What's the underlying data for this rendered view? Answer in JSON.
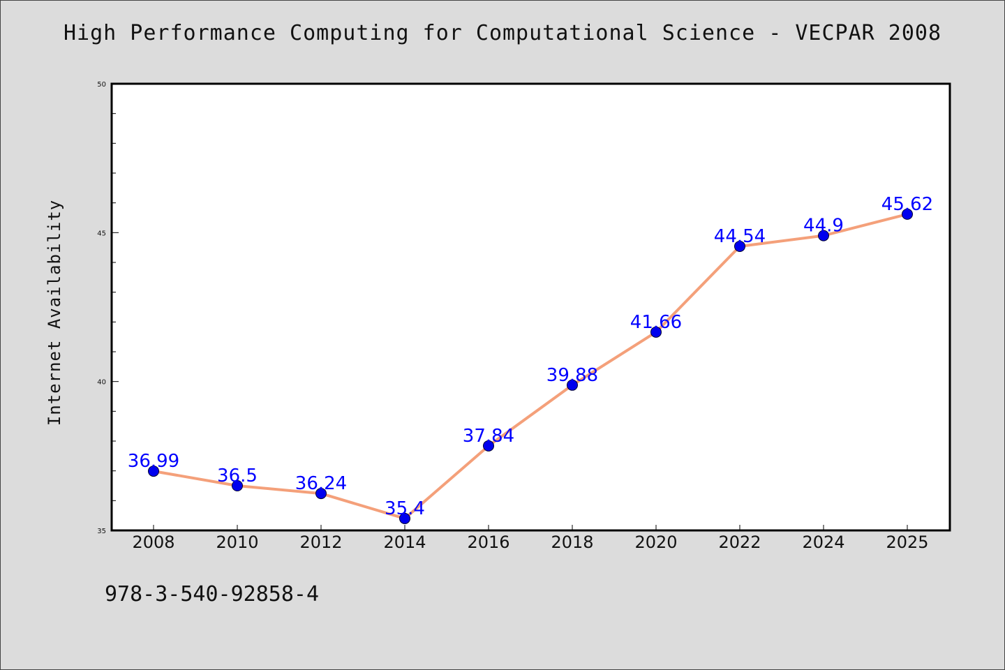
{
  "chart_data": {
    "type": "line",
    "title": "High Performance Computing for Computational Science - VECPAR 2008",
    "ylabel": "Internet Availability",
    "xlabel": "",
    "categories": [
      "2008",
      "2010",
      "2012",
      "2014",
      "2016",
      "2018",
      "2020",
      "2022",
      "2024",
      "2025"
    ],
    "series": [
      {
        "values": [
          36.99,
          36.5,
          36.24,
          35.4,
          37.84,
          39.88,
          41.66,
          44.54,
          44.9,
          45.62
        ],
        "labels": [
          "36.99",
          "36.5",
          "36.24",
          "35.4",
          "37.84",
          "39.88",
          "41.66",
          "44.54",
          "44.9",
          "45.62"
        ]
      }
    ],
    "ylim": [
      35,
      50
    ],
    "yticks": [
      "35",
      "40",
      "45",
      "50"
    ],
    "grid": false,
    "colors": {
      "line": "#f4a07a",
      "marker": "#0000ee",
      "label": "#0000ff"
    }
  },
  "footer": {
    "isbn": "978-3-540-92858-4"
  }
}
